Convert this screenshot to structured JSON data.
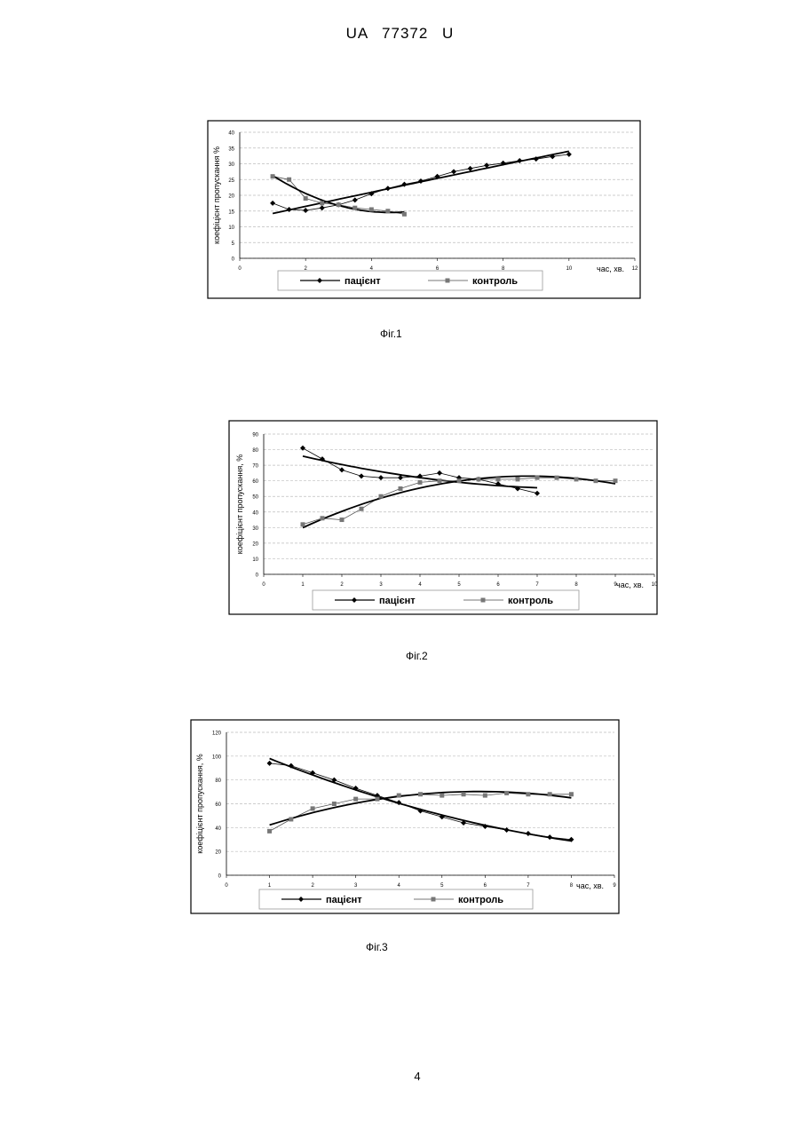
{
  "header": {
    "doc_id": "UA   77372   U"
  },
  "captions": [
    "Фіг.1",
    "Фіг.2",
    "Фіг.3"
  ],
  "page_number": "4",
  "chart_data": [
    {
      "type": "line",
      "ylabel": "коефіцієнт пропускання %",
      "xlabel": "час, хв.",
      "xlim": [
        0,
        12
      ],
      "ylim": [
        0,
        40
      ],
      "xticks": [
        "0",
        "2",
        "4",
        "6",
        "8",
        "10",
        "12"
      ],
      "yticks": [
        "0",
        "5",
        "10",
        "15",
        "20",
        "25",
        "30",
        "35",
        "40"
      ],
      "grid": true,
      "legend": "bottom",
      "series": [
        {
          "name": "пацієнт",
          "x": [
            1,
            1.5,
            2,
            2.5,
            3,
            3.5,
            4,
            4.5,
            5,
            5.5,
            6,
            6.5,
            7,
            7.5,
            8,
            8.5,
            9,
            9.5,
            10
          ],
          "values": [
            17.5,
            15.5,
            15.2,
            16,
            17,
            18.5,
            20.5,
            22.2,
            23.5,
            24.5,
            26,
            27.5,
            28.5,
            29.5,
            30.2,
            31,
            31.5,
            32.3,
            33
          ]
        },
        {
          "name": "контроль",
          "x": [
            1,
            1.5,
            2,
            2.5,
            3,
            3.5,
            4,
            4.5,
            5
          ],
          "values": [
            26,
            25,
            19,
            17.5,
            17,
            16,
            15.5,
            15,
            14
          ]
        }
      ]
    },
    {
      "type": "line",
      "ylabel": "коефіцієнт пропускання, %",
      "xlabel": "час, хв.",
      "xlim": [
        0,
        10
      ],
      "ylim": [
        0,
        90
      ],
      "xticks": [
        "0",
        "1",
        "2",
        "3",
        "4",
        "5",
        "6",
        "7",
        "8",
        "9",
        "10"
      ],
      "yticks": [
        "0",
        "10",
        "20",
        "30",
        "40",
        "50",
        "60",
        "70",
        "80",
        "90"
      ],
      "grid": true,
      "legend": "bottom",
      "series": [
        {
          "name": "пацієнт",
          "x": [
            1,
            1.5,
            2,
            2.5,
            3,
            3.5,
            4,
            4.5,
            5,
            5.5,
            6,
            6.5,
            7
          ],
          "values": [
            81,
            74,
            67,
            63,
            62,
            62,
            63,
            65,
            62,
            61,
            58,
            55,
            52
          ]
        },
        {
          "name": "контроль",
          "x": [
            1,
            1.5,
            2,
            2.5,
            3,
            3.5,
            4,
            4.5,
            5,
            5.5,
            6,
            6.5,
            7,
            7.5,
            8,
            8.5,
            9
          ],
          "values": [
            32,
            36,
            35,
            42,
            50,
            55,
            59,
            60,
            60,
            61,
            61,
            61,
            62,
            62,
            61,
            60,
            60
          ]
        }
      ]
    },
    {
      "type": "line",
      "ylabel": "коефіцієнт пропускання, %",
      "xlabel": "час, хв.",
      "xlim": [
        0,
        9
      ],
      "ylim": [
        0,
        120
      ],
      "xticks": [
        "0",
        "1",
        "2",
        "3",
        "4",
        "5",
        "6",
        "7",
        "8",
        "9"
      ],
      "yticks": [
        "0",
        "20",
        "40",
        "60",
        "80",
        "100",
        "120"
      ],
      "grid": true,
      "legend": "bottom",
      "series": [
        {
          "name": "пацієнт",
          "x": [
            1,
            1.5,
            2,
            2.5,
            3,
            3.5,
            4,
            4.5,
            5,
            5.5,
            6,
            6.5,
            7,
            7.5,
            8
          ],
          "values": [
            94,
            92,
            86,
            80,
            73,
            67,
            61,
            54,
            49,
            44,
            41,
            38,
            35,
            32,
            30
          ]
        },
        {
          "name": "контроль",
          "x": [
            1,
            1.5,
            2,
            2.5,
            3,
            3.5,
            4,
            4.5,
            5,
            5.5,
            6,
            6.5,
            7,
            7.5,
            8
          ],
          "values": [
            37,
            47,
            56,
            60,
            64,
            64,
            67,
            68,
            67,
            68,
            67,
            69,
            68,
            68,
            68
          ]
        }
      ]
    }
  ]
}
